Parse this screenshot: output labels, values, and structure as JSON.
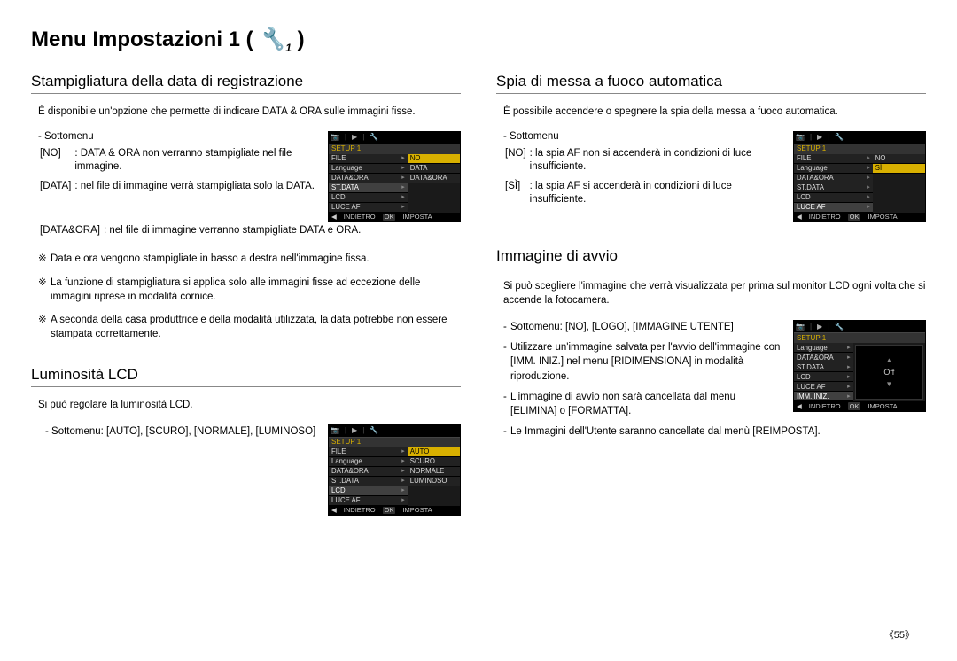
{
  "page": {
    "title_prefix": "Menu Impostazioni 1 ( ",
    "icon_char": "🔧₁",
    "title_suffix": " )",
    "page_number": "《55》"
  },
  "left": {
    "sec1": {
      "heading": "Stampigliatura della data di registrazione",
      "intro": "È disponibile un'opzione che permette di indicare DATA & ORA sulle immagini fisse.",
      "sottomenu": "- Sottomenu",
      "defs": [
        {
          "k": "[NO]",
          "v": ": DATA & ORA non verranno stampigliate nel file immagine."
        },
        {
          "k": "[DATA]",
          "v": ": nel file di immagine verrà stampigliata solo la DATA."
        },
        {
          "k": "[DATA&ORA]",
          "v": ": nel file di immagine verranno stampigliate DATA e ORA."
        }
      ],
      "notes": [
        "Data e ora vengono stampigliate in basso a destra nell'immagine fissa.",
        "La funzione di stampigliatura si applica solo alle immagini fisse ad eccezione delle immagini riprese in modalità cornice.",
        "A seconda della casa produttrice e della modalità utilizzata, la data potrebbe non essere stampata correttamente."
      ]
    },
    "sec2": {
      "heading": "Luminosità LCD",
      "intro": "Si può regolare la luminosità LCD.",
      "sottomenu": "- Sottomenu: [AUTO], [SCURO], [NORMALE], [LUMINOSO]"
    }
  },
  "right": {
    "sec1": {
      "heading": "Spia di messa a fuoco automatica",
      "intro": "È possibile accendere o spegnere la spia della messa a fuoco automatica.",
      "sottomenu": "- Sottomenu",
      "defs": [
        {
          "k": "[NO]",
          "v": ": la spia AF non si accenderà in condizioni di luce insufficiente."
        },
        {
          "k": "[SÌ]",
          "v": ": la spia AF si accenderà in condizioni di luce insufficiente."
        }
      ]
    },
    "sec2": {
      "heading": "Immagine di avvio",
      "intro": "Si può scegliere l'immagine che verrà visualizzata per prima sul monitor LCD ogni volta che si accende la fotocamera.",
      "bullets": [
        "Sottomenu: [NO], [LOGO], [IMMAGINE UTENTE]",
        "Utilizzare un'immagine salvata per l'avvio dell'immagine con [IMM. INIZ.] nel menu [RIDIMENSIONA] in modalità riproduzione.",
        "L'immagine di avvio non sarà cancellata dal menu [ELIMINA] o [FORMATTA].",
        "Le Immagini dell'Utente saranno cancellate dal menù [REIMPOSTA]."
      ]
    }
  },
  "cam_common": {
    "setup_title": "SETUP 1",
    "indietro": "INDIETRO",
    "ok": "OK",
    "imposta": "IMPOSTA",
    "tabs": [
      "📷",
      "|",
      "▶",
      "|",
      "🔧"
    ]
  },
  "cam1": {
    "left": [
      "FILE",
      "Language",
      "DATA&ORA",
      "ST.DATA",
      "LCD",
      "LUCE AF"
    ],
    "right": [
      "NO",
      "DATA",
      "DATA&ORA"
    ],
    "hl_left_idx": 3,
    "hl_right_idx": 0
  },
  "cam2": {
    "left": [
      "FILE",
      "Language",
      "DATA&ORA",
      "ST.DATA",
      "LCD",
      "LUCE AF"
    ],
    "right": [
      "AUTO",
      "SCURO",
      "NORMALE",
      "LUMINOSO"
    ],
    "hl_left_idx": 4,
    "hl_right_idx": 0
  },
  "cam3": {
    "left": [
      "FILE",
      "Language",
      "DATA&ORA",
      "ST.DATA",
      "LCD",
      "LUCE AF"
    ],
    "right": [
      "NO",
      "SÌ"
    ],
    "hl_left_idx": 5,
    "hl_right_idx": 1
  },
  "cam4": {
    "left": [
      "Language",
      "DATA&ORA",
      "ST.DATA",
      "LCD",
      "LUCE AF",
      "IMM. INIZ."
    ],
    "preview_text": "Off",
    "hl_left_idx": 5
  },
  "colors": {
    "bg": "#ffffff",
    "text": "#000000",
    "rule": "#888888",
    "cam_bg": "#1a1a1a",
    "cam_gold": "#d8b000",
    "cam_text": "#dddddd"
  }
}
